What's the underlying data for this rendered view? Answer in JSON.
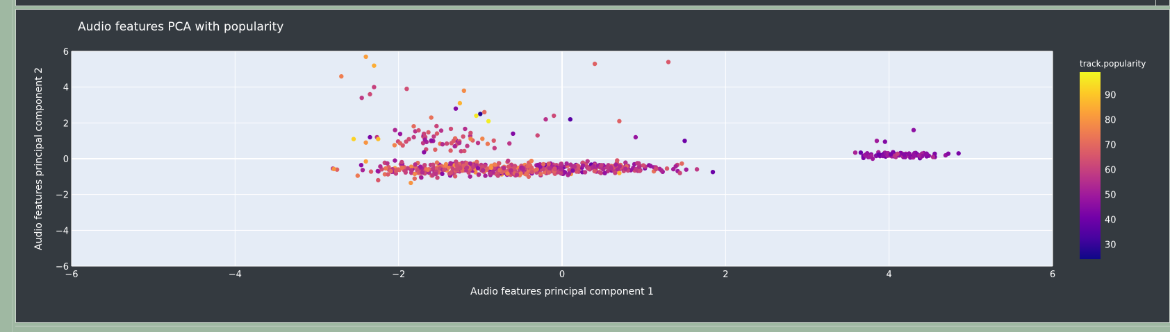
{
  "chart_data": {
    "type": "scatter",
    "title": "Audio features PCA with popularity",
    "xlabel": "Audio features principal component 1",
    "ylabel": "Audio features principal component 2",
    "xlim": [
      -6,
      6
    ],
    "ylim": [
      -6,
      6
    ],
    "x_ticks": [
      -6,
      -4,
      -2,
      0,
      2,
      4,
      6
    ],
    "y_ticks": [
      -6,
      -4,
      -2,
      0,
      2,
      4,
      6
    ],
    "grid": true,
    "colorbar": {
      "title": "track.popularity",
      "range": [
        24,
        99
      ],
      "ticks": [
        30,
        40,
        50,
        60,
        70,
        80,
        90
      ],
      "colorscale": [
        "#0d0887",
        "#46039f",
        "#7201a8",
        "#9c179e",
        "#bd3786",
        "#d8576b",
        "#ed7953",
        "#fb9f3a",
        "#fdca26",
        "#f0f921"
      ]
    },
    "clusters": [
      {
        "x_center": -1.0,
        "y_center": -0.6,
        "x_spread": 1.3,
        "y_spread": 0.35,
        "count": 380,
        "pop_mean": 62,
        "pop_spread": 14
      },
      {
        "x_center": 0.6,
        "y_center": -0.5,
        "x_spread": 1.0,
        "y_spread": 0.25,
        "count": 150,
        "pop_mean": 58,
        "pop_spread": 12
      },
      {
        "x_center": 4.2,
        "y_center": 0.2,
        "x_spread": 0.45,
        "y_spread": 0.15,
        "count": 90,
        "pop_mean": 47,
        "pop_spread": 8
      },
      {
        "x_center": -1.5,
        "y_center": 1.0,
        "x_spread": 0.55,
        "y_spread": 0.8,
        "count": 60,
        "pop_mean": 60,
        "pop_spread": 14
      }
    ],
    "points": [
      {
        "x": -2.4,
        "y": 5.7,
        "pop": 82
      },
      {
        "x": -2.3,
        "y": 5.2,
        "pop": 85
      },
      {
        "x": -2.7,
        "y": 4.6,
        "pop": 75
      },
      {
        "x": -2.3,
        "y": 4.0,
        "pop": 60
      },
      {
        "x": -2.35,
        "y": 3.6,
        "pop": 62
      },
      {
        "x": -2.45,
        "y": 3.4,
        "pop": 58
      },
      {
        "x": 0.4,
        "y": 5.3,
        "pop": 68
      },
      {
        "x": 1.3,
        "y": 5.4,
        "pop": 66
      },
      {
        "x": -1.9,
        "y": 3.9,
        "pop": 63
      },
      {
        "x": -1.2,
        "y": 3.8,
        "pop": 78
      },
      {
        "x": -1.25,
        "y": 3.1,
        "pop": 86
      },
      {
        "x": -1.3,
        "y": 2.8,
        "pop": 44
      },
      {
        "x": -1.0,
        "y": 2.5,
        "pop": 28
      },
      {
        "x": -0.95,
        "y": 2.6,
        "pop": 70
      },
      {
        "x": -1.05,
        "y": 2.4,
        "pop": 96
      },
      {
        "x": -0.9,
        "y": 2.1,
        "pop": 97
      },
      {
        "x": 0.1,
        "y": 2.2,
        "pop": 36
      },
      {
        "x": 0.7,
        "y": 2.1,
        "pop": 68
      },
      {
        "x": -0.1,
        "y": 2.4,
        "pop": 62
      },
      {
        "x": -0.2,
        "y": 2.2,
        "pop": 56
      },
      {
        "x": -2.55,
        "y": 1.1,
        "pop": 92
      },
      {
        "x": -2.25,
        "y": 1.1,
        "pop": 88
      },
      {
        "x": -2.4,
        "y": 0.9,
        "pop": 80
      },
      {
        "x": -2.35,
        "y": 1.2,
        "pop": 42
      },
      {
        "x": -2.4,
        "y": -0.15,
        "pop": 82
      },
      {
        "x": -2.5,
        "y": -0.95,
        "pop": 74
      },
      {
        "x": -2.25,
        "y": -1.2,
        "pop": 66
      },
      {
        "x": 4.3,
        "y": 1.6,
        "pop": 46
      },
      {
        "x": 3.85,
        "y": 1.0,
        "pop": 50
      },
      {
        "x": 3.95,
        "y": 0.95,
        "pop": 44
      },
      {
        "x": 0.9,
        "y": 1.2,
        "pop": 48
      },
      {
        "x": 1.5,
        "y": 1.0,
        "pop": 40
      },
      {
        "x": -1.85,
        "y": -1.35,
        "pop": 80
      },
      {
        "x": 4.85,
        "y": 0.3,
        "pop": 42
      },
      {
        "x": 0.7,
        "y": -0.8,
        "pop": 86
      },
      {
        "x": -0.3,
        "y": 1.3,
        "pop": 62
      },
      {
        "x": -0.6,
        "y": 1.4,
        "pop": 44
      },
      {
        "x": -1.6,
        "y": 2.3,
        "pop": 72
      }
    ]
  }
}
